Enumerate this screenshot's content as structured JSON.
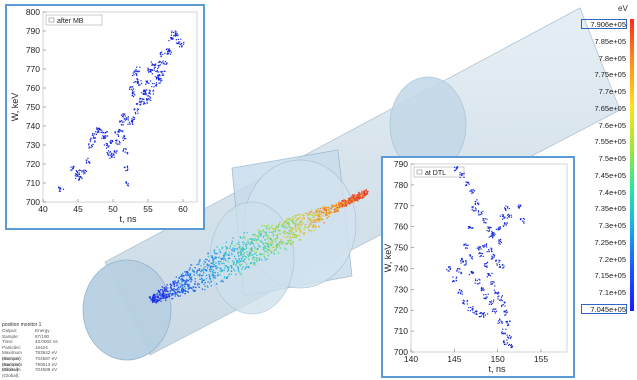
{
  "colors": {
    "frame_border": "#5b9bd5",
    "scatter_blue": "#1426e0",
    "cylinder_fill": "#cfe0ec"
  },
  "inset_mb": {
    "legend": "after MB",
    "chart_data": {
      "type": "scatter",
      "xlabel": "t, ns",
      "ylabel": "W, keV",
      "xlim": [
        40,
        62
      ],
      "ylim": [
        700,
        800
      ],
      "x_ticks": [
        "40",
        "45",
        "50",
        "55",
        "60"
      ],
      "y_ticks": [
        "700",
        "710",
        "720",
        "730",
        "740",
        "750",
        "760",
        "770",
        "780",
        "790",
        "800"
      ],
      "series": [
        {
          "name": "after MB",
          "color": "#1426e0",
          "points": [
            [
              44.2,
              718
            ],
            [
              44.8,
              714
            ],
            [
              45.3,
              713
            ],
            [
              45.8,
              716
            ],
            [
              46.3,
              722
            ],
            [
              46.8,
              730
            ],
            [
              47.3,
              735
            ],
            [
              47.8,
              738
            ],
            [
              48.2,
              738
            ],
            [
              48.6,
              735
            ],
            [
              49.0,
              730
            ],
            [
              49.4,
              726
            ],
            [
              49.8,
              724
            ],
            [
              50.2,
              726
            ],
            [
              50.6,
              732
            ],
            [
              51.0,
              738
            ],
            [
              51.2,
              742
            ],
            [
              51.5,
              734
            ],
            [
              51.7,
              727
            ],
            [
              51.9,
              718
            ],
            [
              52.1,
              710
            ],
            [
              51.4,
              746
            ],
            [
              51.9,
              744
            ],
            [
              52.4,
              742
            ],
            [
              52.9,
              744
            ],
            [
              53.3,
              748
            ],
            [
              53.6,
              752
            ],
            [
              54.0,
              754
            ],
            [
              54.4,
              758
            ],
            [
              54.9,
              763
            ],
            [
              55.3,
              769
            ],
            [
              55.7,
              773
            ],
            [
              56.1,
              770
            ],
            [
              56.4,
              766
            ],
            [
              56.7,
              764
            ],
            [
              57.0,
              768
            ],
            [
              57.4,
              774
            ],
            [
              57.8,
              780
            ],
            [
              58.2,
              786
            ],
            [
              58.6,
              789
            ],
            [
              59.0,
              788
            ],
            [
              59.3,
              785
            ],
            [
              59.7,
              783
            ],
            [
              52.6,
              760
            ],
            [
              53.0,
              768
            ],
            [
              53.4,
              770
            ],
            [
              53.8,
              763
            ],
            [
              54.2,
              758
            ],
            [
              54.6,
              753
            ],
            [
              55.0,
              755
            ],
            [
              55.4,
              758
            ],
            [
              55.8,
              762
            ],
            [
              56.2,
              766
            ],
            [
              56.6,
              773
            ],
            [
              57.0,
              778
            ],
            [
              49.5,
              732
            ],
            [
              50.5,
              736
            ],
            [
              52.7,
              757
            ],
            [
              53.2,
              764
            ],
            [
              55.2,
              770
            ],
            [
              58.0,
              779
            ],
            [
              42.5,
              707
            ],
            [
              45.0,
              716
            ],
            [
              47.0,
              733
            ],
            [
              48.8,
              736
            ]
          ]
        }
      ]
    }
  },
  "inset_dtl": {
    "legend": "at DTL",
    "chart_data": {
      "type": "scatter",
      "xlabel": "t, ns",
      "ylabel": "W, keV",
      "xlim": [
        140,
        158
      ],
      "ylim": [
        700,
        790
      ],
      "x_ticks": [
        "140",
        "145",
        "150",
        "155"
      ],
      "y_ticks": [
        "700",
        "710",
        "720",
        "730",
        "740",
        "750",
        "760",
        "770",
        "780",
        "790"
      ],
      "series": [
        {
          "name": "at DTL",
          "color": "#1426e0",
          "points": [
            [
              145.2,
              788
            ],
            [
              145.8,
              785
            ],
            [
              146.5,
              781
            ],
            [
              147.0,
              777
            ],
            [
              147.5,
              772
            ],
            [
              148.0,
              767
            ],
            [
              148.5,
              763
            ],
            [
              149.0,
              759
            ],
            [
              149.5,
              757
            ],
            [
              150.0,
              760
            ],
            [
              150.5,
              765
            ],
            [
              151.0,
              769
            ],
            [
              151.3,
              765
            ],
            [
              150.8,
              761
            ],
            [
              147.2,
              769
            ],
            [
              146.8,
              760
            ],
            [
              146.3,
              751
            ],
            [
              145.8,
              744
            ],
            [
              145.5,
              739
            ],
            [
              146.2,
              743
            ],
            [
              147.0,
              746
            ],
            [
              147.8,
              750
            ],
            [
              148.5,
              751
            ],
            [
              149.0,
              749
            ],
            [
              149.5,
              746
            ],
            [
              150.0,
              743
            ],
            [
              150.4,
              741
            ],
            [
              148.0,
              747
            ],
            [
              148.5,
              742
            ],
            [
              149.0,
              737
            ],
            [
              149.4,
              733
            ],
            [
              149.8,
              729
            ],
            [
              150.2,
              726
            ],
            [
              150.6,
              723
            ],
            [
              150.9,
              719
            ],
            [
              151.1,
              714
            ],
            [
              151.3,
              708
            ],
            [
              151.4,
              703
            ],
            [
              146.9,
              738
            ],
            [
              147.6,
              734
            ],
            [
              148.2,
              730
            ],
            [
              148.6,
              727
            ],
            [
              149.2,
              724
            ],
            [
              149.6,
              720
            ],
            [
              150.2,
              715
            ],
            [
              150.6,
              710
            ],
            [
              150.9,
              705
            ],
            [
              144.2,
              740
            ],
            [
              145.0,
              735
            ],
            [
              145.6,
              729
            ],
            [
              146.2,
              724
            ],
            [
              146.8,
              721
            ],
            [
              147.3,
              719
            ],
            [
              148.0,
              718
            ],
            [
              148.5,
              718
            ],
            [
              152.3,
              770
            ],
            [
              152.8,
              763
            ],
            [
              150.1,
              753
            ],
            [
              149.2,
              756
            ]
          ]
        }
      ]
    }
  },
  "colorbar": {
    "unit": "eV",
    "labels": [
      "7.906e+05",
      "7.85e+05",
      "7.8e+05",
      "7.75e+05",
      "7.7e+05",
      "7.65e+05",
      "7.6e+05",
      "7.55e+05",
      "7.5e+05",
      "7.45e+05",
      "7.4e+05",
      "7.35e+05",
      "7.3e+05",
      "7.25e+05",
      "7.2e+05",
      "7.15e+05",
      "7.1e+05",
      "7.045e+05"
    ]
  },
  "info_panel": {
    "title": "position monitor 1",
    "rows": [
      {
        "k": "Output:",
        "v": "Energy"
      },
      {
        "k": "Sample:",
        "v": "87/190"
      },
      {
        "k": "Time:",
        "v": "43.0002 ns"
      },
      {
        "k": "Particles:",
        "v": "16424"
      },
      {
        "k": "Maximum (Sample):",
        "v": "783942 eV"
      },
      {
        "k": "Minimum (Sample):",
        "v": "704587 eV"
      },
      {
        "k": "Maximum (Global):",
        "v": "790613 eV"
      },
      {
        "k": "Minimum (Global):",
        "v": "704588 eV"
      }
    ]
  }
}
